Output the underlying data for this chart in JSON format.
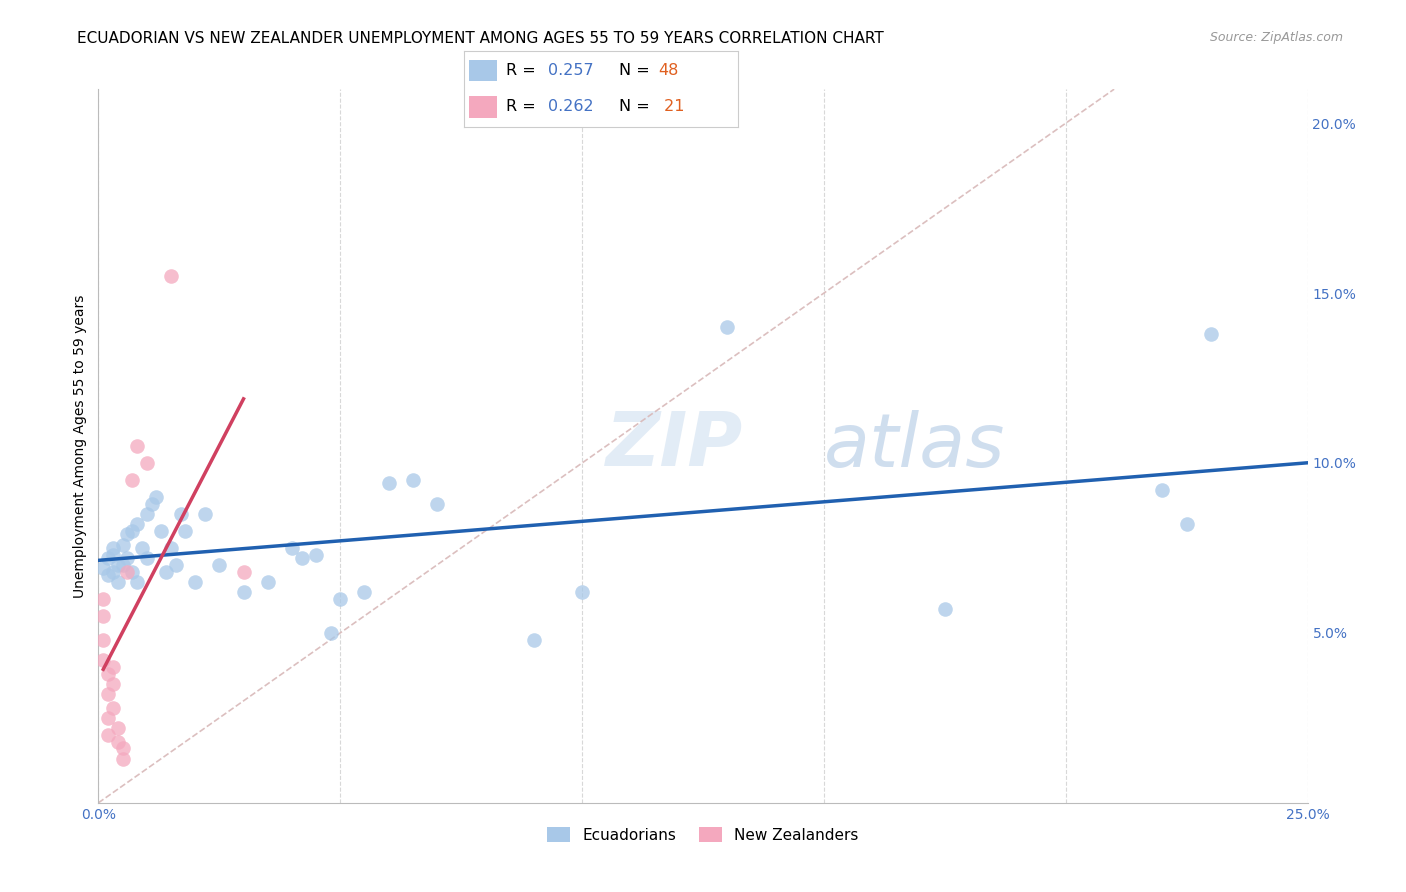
{
  "title": "ECUADORIAN VS NEW ZEALANDER UNEMPLOYMENT AMONG AGES 55 TO 59 YEARS CORRELATION CHART",
  "source": "Source: ZipAtlas.com",
  "ylabel": "Unemployment Among Ages 55 to 59 years",
  "xlim": [
    0.0,
    0.25
  ],
  "ylim": [
    0.0,
    0.21
  ],
  "ec_color": "#a8c8e8",
  "nz_color": "#f4a8be",
  "ec_line_color": "#2060b0",
  "nz_line_color": "#d04060",
  "diagonal_color": "#d8b8b8",
  "background_color": "#ffffff",
  "watermark_zip": "ZIP",
  "watermark_atlas": "atlas",
  "title_fontsize": 11,
  "axis_label_fontsize": 10,
  "tick_fontsize": 10,
  "ecuadorians_x": [
    0.001,
    0.002,
    0.002,
    0.003,
    0.003,
    0.003,
    0.004,
    0.004,
    0.005,
    0.005,
    0.006,
    0.006,
    0.007,
    0.007,
    0.008,
    0.008,
    0.009,
    0.01,
    0.01,
    0.011,
    0.012,
    0.013,
    0.014,
    0.015,
    0.016,
    0.017,
    0.018,
    0.02,
    0.022,
    0.025,
    0.03,
    0.035,
    0.04,
    0.042,
    0.045,
    0.048,
    0.05,
    0.055,
    0.06,
    0.065,
    0.07,
    0.09,
    0.1,
    0.13,
    0.175,
    0.22,
    0.225,
    0.23
  ],
  "ecuadorians_y": [
    0.069,
    0.072,
    0.067,
    0.075,
    0.068,
    0.073,
    0.07,
    0.065,
    0.07,
    0.076,
    0.072,
    0.079,
    0.068,
    0.08,
    0.065,
    0.082,
    0.075,
    0.072,
    0.085,
    0.088,
    0.09,
    0.08,
    0.068,
    0.075,
    0.07,
    0.085,
    0.08,
    0.065,
    0.085,
    0.07,
    0.062,
    0.065,
    0.075,
    0.072,
    0.073,
    0.05,
    0.06,
    0.062,
    0.094,
    0.095,
    0.088,
    0.048,
    0.062,
    0.14,
    0.057,
    0.092,
    0.082,
    0.138
  ],
  "new_zealanders_x": [
    0.001,
    0.001,
    0.001,
    0.001,
    0.002,
    0.002,
    0.002,
    0.002,
    0.003,
    0.003,
    0.003,
    0.004,
    0.004,
    0.005,
    0.005,
    0.006,
    0.007,
    0.008,
    0.01,
    0.015,
    0.03
  ],
  "new_zealanders_y": [
    0.06,
    0.055,
    0.048,
    0.042,
    0.038,
    0.032,
    0.025,
    0.02,
    0.04,
    0.035,
    0.028,
    0.022,
    0.018,
    0.016,
    0.013,
    0.068,
    0.095,
    0.105,
    0.1,
    0.155,
    0.068
  ]
}
